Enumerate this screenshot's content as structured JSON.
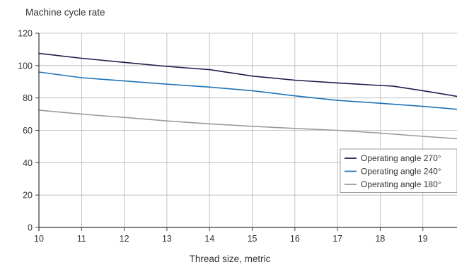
{
  "chart_data": {
    "type": "line",
    "ylabel": "Machine cycle rate",
    "xlabel": "Thread size, metric",
    "xlim": [
      10,
      19.8
    ],
    "ylim": [
      0,
      120
    ],
    "x_ticks": [
      "10",
      "11",
      "12",
      "13",
      "14",
      "15",
      "16",
      "17",
      "18",
      "19"
    ],
    "y_ticks": [
      "0",
      "20",
      "40",
      "60",
      "80",
      "100",
      "120"
    ],
    "grid": true,
    "legend_position": "right",
    "series": [
      {
        "name": "Operating angle 270°",
        "color": "#1f1c4a",
        "x": [
          10,
          11,
          12,
          13,
          14,
          15,
          16,
          17,
          18,
          18.3,
          19,
          19.8
        ],
        "y": [
          107.5,
          104.5,
          102,
          99.5,
          97.5,
          93.5,
          91,
          89.3,
          87.7,
          87.3,
          84.5,
          81
        ]
      },
      {
        "name": "Operating angle 240°",
        "color": "#1f73b7",
        "x": [
          10,
          11,
          12,
          13,
          14,
          15,
          16,
          17,
          18,
          19,
          19.8
        ],
        "y": [
          96,
          92.5,
          90.5,
          88.5,
          86.7,
          84.5,
          81.3,
          78.5,
          76.7,
          74.8,
          73
        ]
      },
      {
        "name": "Operating angle 180°",
        "color": "#9a9a9a",
        "x": [
          10,
          11,
          12,
          13,
          14,
          15,
          16,
          17,
          18,
          19,
          19.8
        ],
        "y": [
          72.5,
          70,
          68,
          65.8,
          64,
          62.5,
          61.2,
          60,
          58.3,
          56.3,
          54.8
        ]
      }
    ]
  }
}
